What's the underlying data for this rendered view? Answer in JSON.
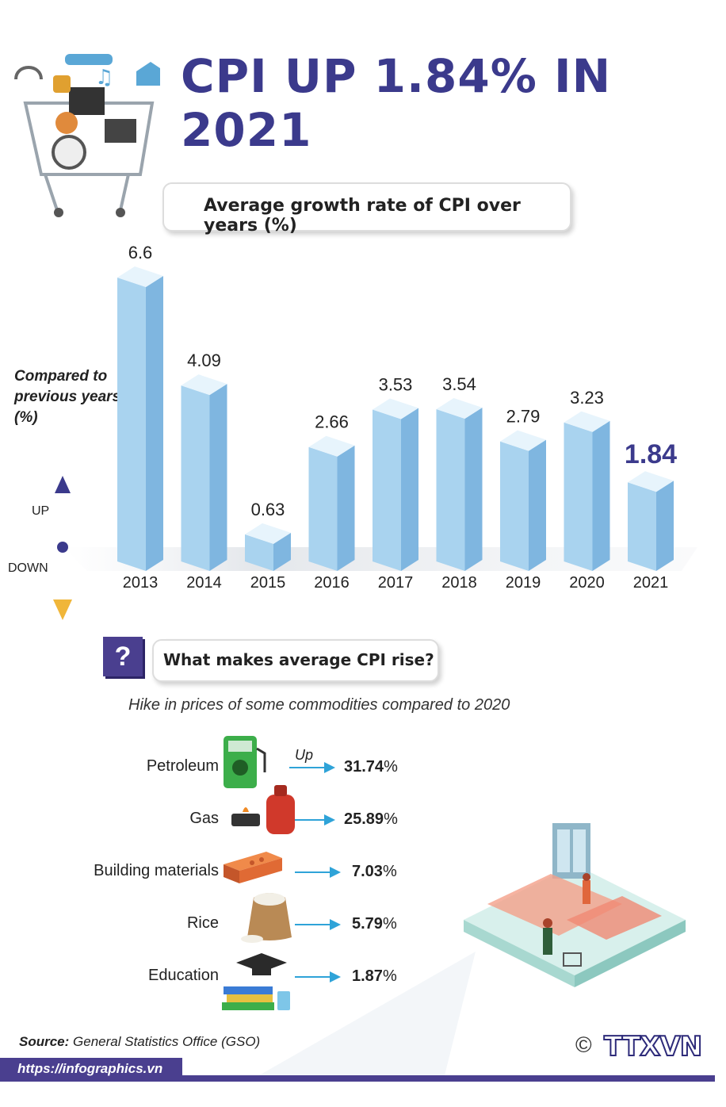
{
  "title": "CPI UP 1.84% IN 2021",
  "section1": {
    "heading": "Average growth rate of CPI over years (%)"
  },
  "axis_note": "Compared to previous years (%)",
  "direction": {
    "up": "UP",
    "down": "DOWN"
  },
  "chart_data": {
    "type": "bar",
    "title": "Average growth rate of CPI over years (%)",
    "ylabel": "Compared to previous years (%)",
    "categories": [
      "2013",
      "2014",
      "2015",
      "2016",
      "2017",
      "2018",
      "2019",
      "2020",
      "2021"
    ],
    "values": [
      6.6,
      4.09,
      0.63,
      2.66,
      3.53,
      3.54,
      2.79,
      3.23,
      1.84
    ],
    "value_labels": [
      "6.6",
      "4.09",
      "0.63",
      "2.66",
      "3.53",
      "3.54",
      "2.79",
      "3.23",
      "1.84"
    ],
    "highlight": "2021",
    "colors": {
      "bar_front": "#a9d3ef",
      "bar_side": "#7fb6e0",
      "bar_top": "#e7f4fc",
      "highlight_label": "#3b3a8c"
    }
  },
  "section2": {
    "question_mark": "?",
    "heading": "What makes average CPI rise?",
    "subtitle": "Hike in prices of some commodities compared to 2020",
    "up_note": "Up",
    "items": [
      {
        "label": "Petroleum",
        "value": "31.74",
        "unit": "%",
        "icon": "fuel-pump-icon"
      },
      {
        "label": "Gas",
        "value": "25.89",
        "unit": "%",
        "icon": "gas-cylinder-icon"
      },
      {
        "label": "Building materials",
        "value": "7.03",
        "unit": "%",
        "icon": "bricks-icon"
      },
      {
        "label": "Rice",
        "value": "5.79",
        "unit": "%",
        "icon": "rice-sack-icon"
      },
      {
        "label": "Education",
        "value": "1.87",
        "unit": "%",
        "icon": "graduation-books-icon"
      }
    ]
  },
  "footer": {
    "source_label": "Source:",
    "source_text": "General Statistics Office (GSO)",
    "url": "https://infographics.vn",
    "copyright": "©",
    "logo": "TTXVN"
  }
}
